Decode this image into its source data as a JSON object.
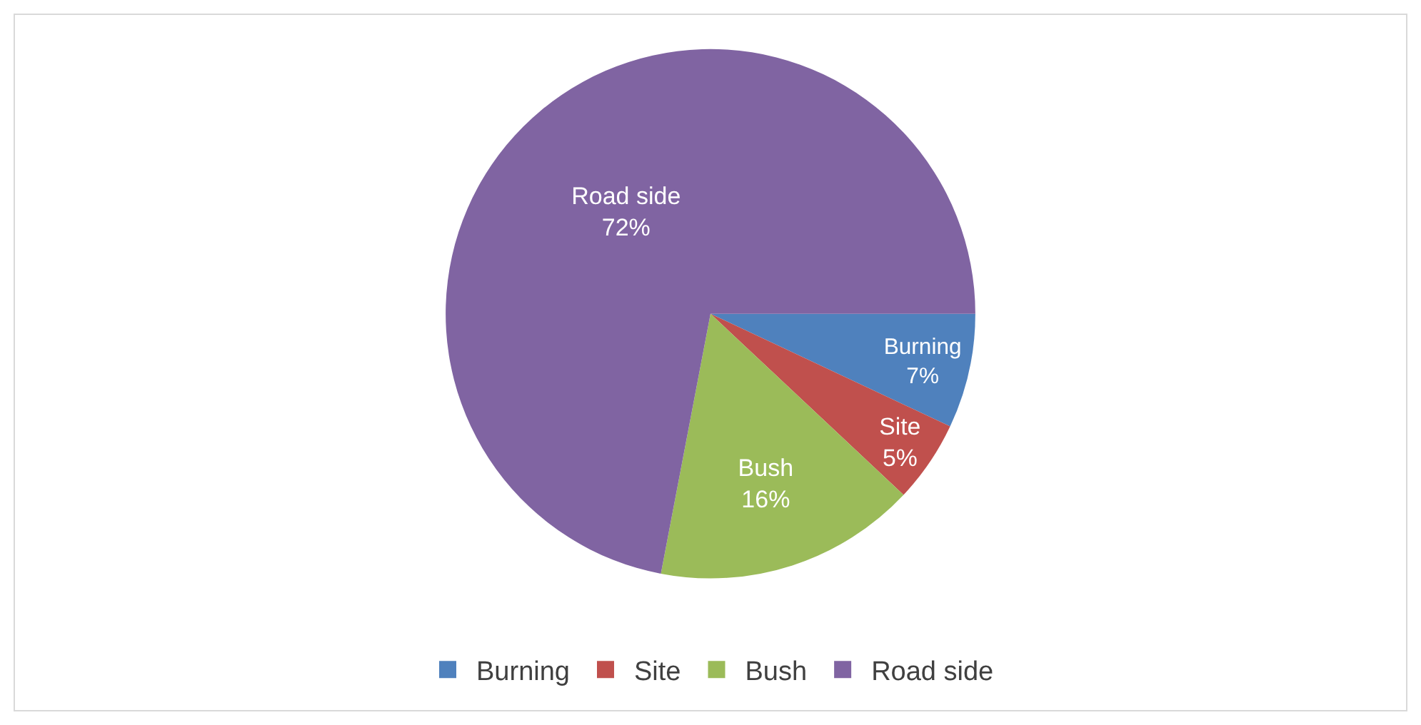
{
  "chart_data": {
    "type": "pie",
    "categories": [
      "Burning",
      "Site",
      "Bush",
      "Road side"
    ],
    "values": [
      7,
      5,
      16,
      72
    ],
    "value_labels": [
      "7%",
      "5%",
      "16%",
      "72%"
    ],
    "colors": [
      "#4f81bd",
      "#c0504d",
      "#9bbb59",
      "#8064a2"
    ],
    "legend": "bottom"
  }
}
